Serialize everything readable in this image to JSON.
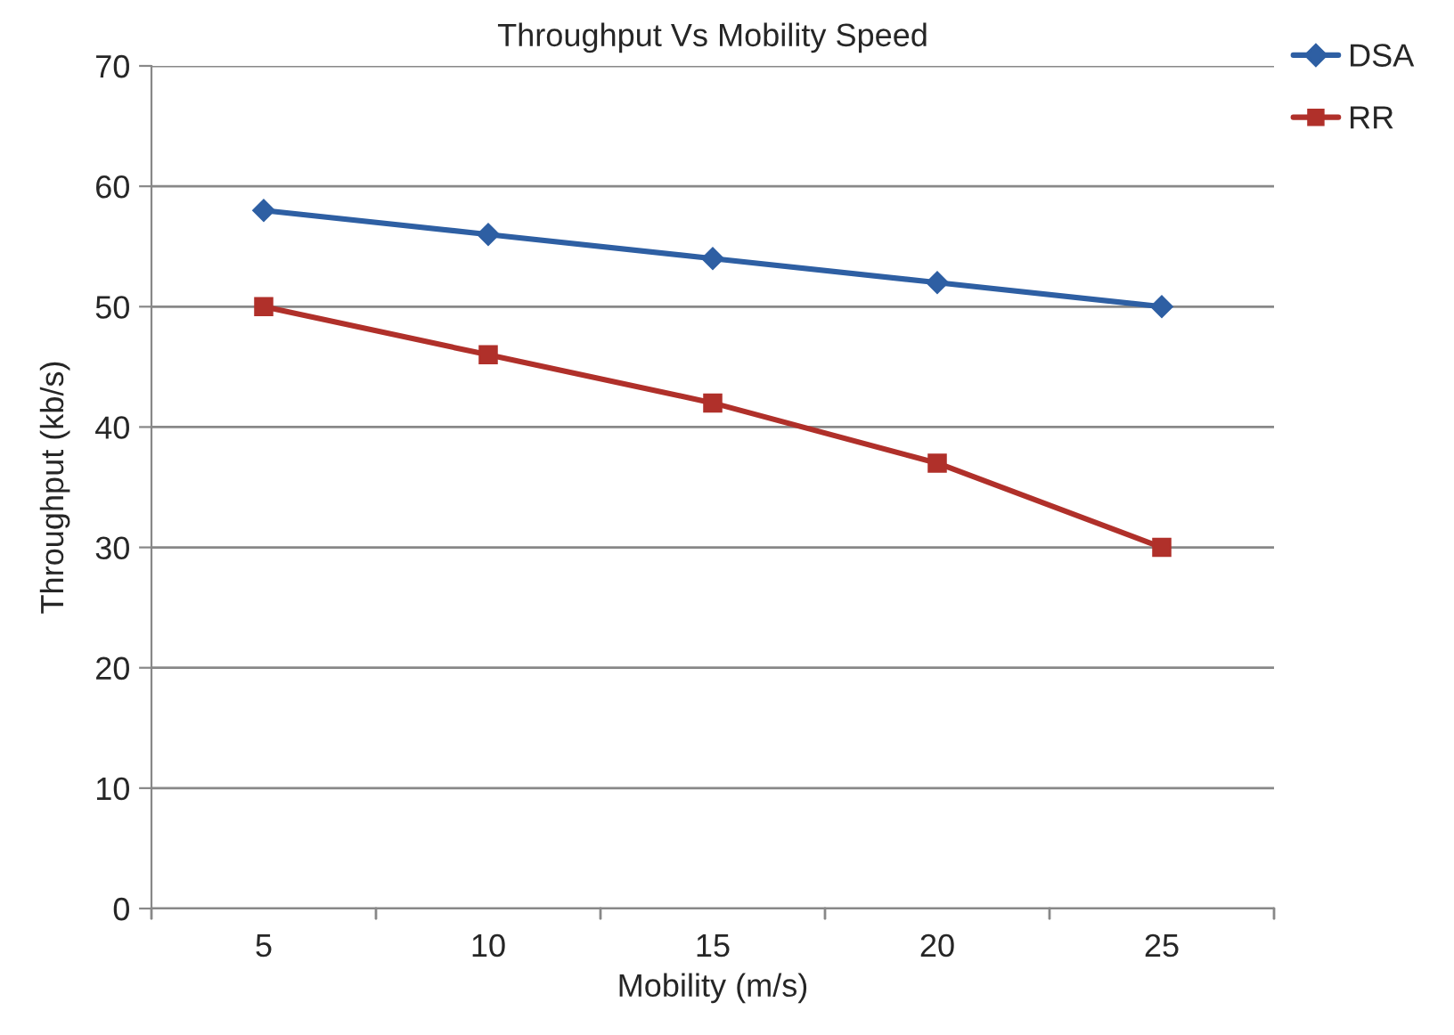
{
  "chart_data": {
    "type": "line",
    "title": "Throughput Vs Mobility Speed",
    "xlabel": "Mobility (m/s)",
    "ylabel": "Throughput (kb/s)",
    "categories": [
      "5",
      "10",
      "15",
      "20",
      "25"
    ],
    "series": [
      {
        "name": "DSA",
        "color": "#2e5fa3",
        "marker": "diamond",
        "values": [
          58,
          56,
          54,
          52,
          50
        ]
      },
      {
        "name": "RR",
        "color": "#b0302a",
        "marker": "square",
        "values": [
          50,
          46,
          42,
          37,
          30
        ]
      }
    ],
    "ylim": [
      0,
      70
    ],
    "yticks": [
      0,
      10,
      20,
      30,
      40,
      50,
      60,
      70
    ],
    "grid": "y",
    "legend": "top right",
    "line_style": "solid"
  }
}
